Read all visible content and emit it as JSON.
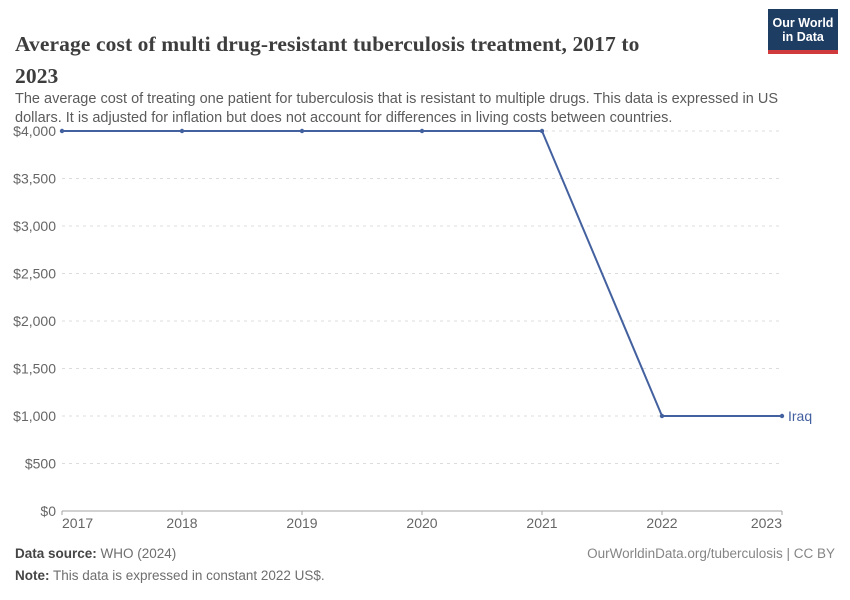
{
  "header": {
    "title_lines": [
      "Average cost of multi drug-resistant tuberculosis treatment, 2017 to",
      "2023"
    ],
    "subtitle_lines": [
      "The average cost of treating one patient for tuberculosis that is resistant to multiple drugs. This data is expressed in US",
      "dollars. It is adjusted for inflation but does not account for differences in living costs between countries."
    ],
    "logo": {
      "line1": "Our World",
      "line2": "in Data"
    }
  },
  "chart_data": {
    "type": "line",
    "title": "Average cost of multi drug-resistant tuberculosis treatment, 2017 to 2023",
    "x": [
      2017,
      2018,
      2019,
      2020,
      2021,
      2022,
      2023
    ],
    "xtick_labels": [
      "2017",
      "2018",
      "2019",
      "2020",
      "2021",
      "2022",
      "2023"
    ],
    "series": [
      {
        "name": "Iraq",
        "values": [
          4000,
          4000,
          4000,
          4000,
          4000,
          1000,
          1000
        ],
        "color": "#44619f"
      }
    ],
    "xlabel": "",
    "ylabel": "",
    "ylim": [
      0,
      4000
    ],
    "ytick_values": [
      0,
      500,
      1000,
      1500,
      2000,
      2500,
      3000,
      3500,
      4000
    ],
    "ytick_labels": [
      "$0",
      "$500",
      "$1,000",
      "$1,500",
      "$2,000",
      "$2,500",
      "$3,000",
      "$3,500",
      "$4,000"
    ],
    "grid": "horizontal-dashed",
    "legend_position": "end-of-line-label"
  },
  "footer": {
    "source_label": "Data source:",
    "source_value": " WHO (2024)",
    "note_label": "Note:",
    "note_value": " This data is expressed in constant 2022 US$.",
    "credit": "OurWorldinData.org/tuberculosis | CC BY"
  },
  "colors": {
    "series": "#44619f",
    "gridline": "#dcdcdc",
    "axis": "#a3a3a3",
    "tick_label": "#666666",
    "title": "#3d3d3d",
    "subtitle": "#5b5b5b",
    "logo_bg": "#1d3d63",
    "logo_accent": "#d13a3c"
  }
}
